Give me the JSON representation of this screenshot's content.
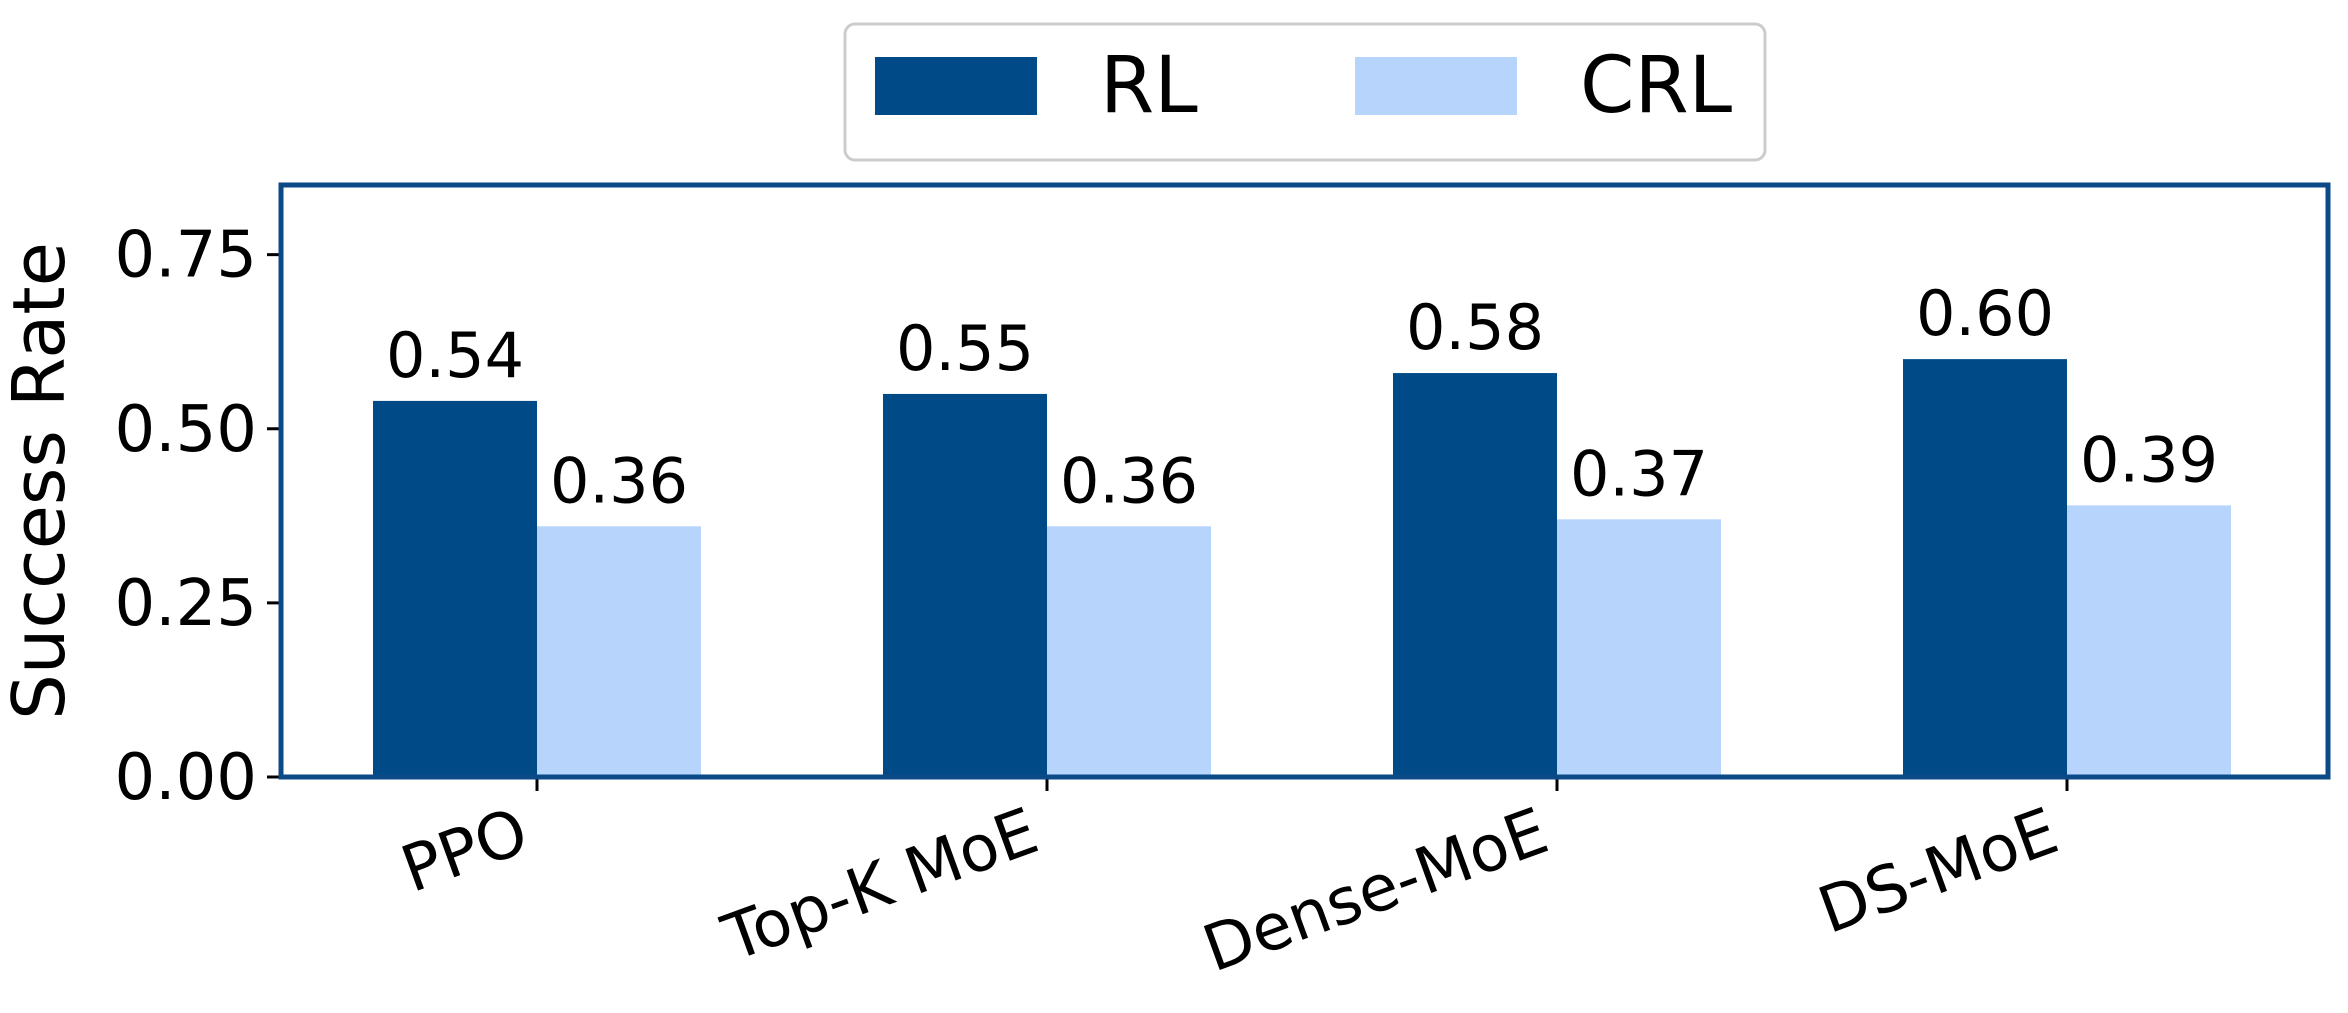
{
  "chart_data": {
    "type": "bar",
    "title": "",
    "xlabel": "",
    "ylabel": "Success Rate",
    "ylim": [
      0,
      0.85
    ],
    "yticks": [
      "0.00",
      "0.25",
      "0.50",
      "0.75"
    ],
    "ytick_values": [
      0,
      0.25,
      0.5,
      0.75
    ],
    "categories": [
      "PPO",
      "Top-K MoE",
      "Dense-MoE",
      "DS-MoE"
    ],
    "series": [
      {
        "name": "RL",
        "color": "#004A87",
        "values": [
          0.54,
          0.55,
          0.58,
          0.6
        ],
        "labels": [
          "0.54",
          "0.55",
          "0.58",
          "0.60"
        ]
      },
      {
        "name": "CRL",
        "color": "#B7D5FC",
        "values": [
          0.36,
          0.36,
          0.37,
          0.39
        ],
        "labels": [
          "0.36",
          "0.36",
          "0.37",
          "0.39"
        ]
      }
    ],
    "legend": "top-center",
    "grid": false,
    "frame_color": "#0B4A87"
  }
}
